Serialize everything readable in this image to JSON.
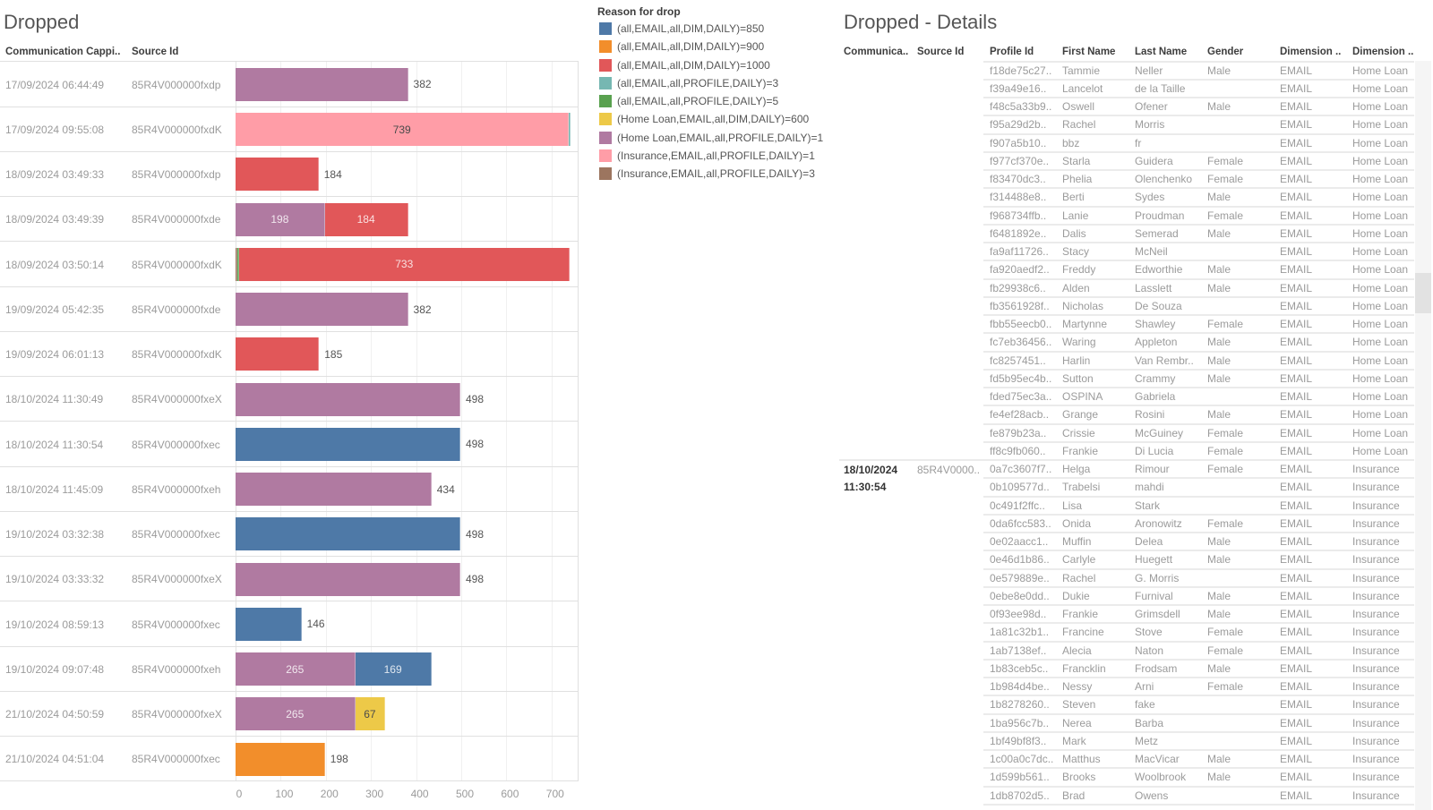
{
  "left_pane": {
    "title": "Dropped",
    "headers": {
      "communication": "Communication Cappi..",
      "source_id": "Source Id"
    }
  },
  "legend": {
    "title": "Reason for drop",
    "items": [
      {
        "label": "(all,EMAIL,all,DIM,DAILY)=850",
        "color": "#4e79a7"
      },
      {
        "label": "(all,EMAIL,all,DIM,DAILY)=900",
        "color": "#f28e2b"
      },
      {
        "label": "(all,EMAIL,all,DIM,DAILY)=1000",
        "color": "#e15759"
      },
      {
        "label": "(all,EMAIL,all,PROFILE,DAILY)=3",
        "color": "#76b7b2"
      },
      {
        "label": "(all,EMAIL,all,PROFILE,DAILY)=5",
        "color": "#59a14f"
      },
      {
        "label": "(Home Loan,EMAIL,all,DIM,DAILY)=600",
        "color": "#edc948"
      },
      {
        "label": "(Home Loan,EMAIL,all,PROFILE,DAILY)=1",
        "color": "#b07aa1"
      },
      {
        "label": "(Insurance,EMAIL,all,PROFILE,DAILY)=1",
        "color": "#ff9da7"
      },
      {
        "label": "(Insurance,EMAIL,all,PROFILE,DAILY)=3",
        "color": "#9c755f"
      }
    ]
  },
  "chart_data": {
    "type": "bar",
    "orientation": "horizontal",
    "stacked": true,
    "title": "Dropped",
    "xlabel": "",
    "ylabel": "",
    "xlim": [
      0,
      760
    ],
    "x_ticks": [
      0,
      100,
      200,
      300,
      400,
      500,
      600,
      700
    ],
    "grid": true,
    "legend_title": "Reason for drop",
    "legend_position": "right",
    "row_headers": [
      "Communication Cappi..",
      "Source Id"
    ],
    "rows": [
      {
        "communication": "17/09/2024 06:44:49",
        "source_id": "85R4V000000fxdp",
        "segments": [
          {
            "reason": 6,
            "value": 382,
            "show_label": true
          }
        ]
      },
      {
        "communication": "17/09/2024 09:55:08",
        "source_id": "85R4V000000fxdK",
        "segments": [
          {
            "reason": 7,
            "value": 739,
            "show_label": true
          },
          {
            "reason": 3,
            "value": 3,
            "show_label": false
          }
        ]
      },
      {
        "communication": "18/09/2024 03:49:33",
        "source_id": "85R4V000000fxdp",
        "segments": [
          {
            "reason": 2,
            "value": 184,
            "show_label": true
          }
        ]
      },
      {
        "communication": "18/09/2024 03:49:39",
        "source_id": "85R4V000000fxde",
        "segments": [
          {
            "reason": 6,
            "value": 198,
            "show_label": true
          },
          {
            "reason": 2,
            "value": 184,
            "show_label": true
          }
        ]
      },
      {
        "communication": "18/09/2024 03:50:14",
        "source_id": "85R4V000000fxdK",
        "segments": [
          {
            "reason": 8,
            "value": 3,
            "show_label": false
          },
          {
            "reason": 4,
            "value": 5,
            "show_label": false
          },
          {
            "reason": 2,
            "value": 733,
            "show_label": true
          }
        ]
      },
      {
        "communication": "19/09/2024 05:42:35",
        "source_id": "85R4V000000fxde",
        "segments": [
          {
            "reason": 6,
            "value": 382,
            "show_label": true
          }
        ]
      },
      {
        "communication": "19/09/2024 06:01:13",
        "source_id": "85R4V000000fxdK",
        "segments": [
          {
            "reason": 2,
            "value": 185,
            "show_label": true
          }
        ]
      },
      {
        "communication": "18/10/2024 11:30:49",
        "source_id": "85R4V000000fxeX",
        "segments": [
          {
            "reason": 6,
            "value": 498,
            "show_label": true
          }
        ]
      },
      {
        "communication": "18/10/2024 11:30:54",
        "source_id": "85R4V000000fxec",
        "segments": [
          {
            "reason": 0,
            "value": 498,
            "show_label": true
          }
        ]
      },
      {
        "communication": "18/10/2024 11:45:09",
        "source_id": "85R4V000000fxeh",
        "segments": [
          {
            "reason": 6,
            "value": 434,
            "show_label": true
          }
        ]
      },
      {
        "communication": "19/10/2024 03:32:38",
        "source_id": "85R4V000000fxec",
        "segments": [
          {
            "reason": 0,
            "value": 498,
            "show_label": true
          }
        ]
      },
      {
        "communication": "19/10/2024 03:33:32",
        "source_id": "85R4V000000fxeX",
        "segments": [
          {
            "reason": 6,
            "value": 498,
            "show_label": true
          }
        ]
      },
      {
        "communication": "19/10/2024 08:59:13",
        "source_id": "85R4V000000fxec",
        "segments": [
          {
            "reason": 0,
            "value": 146,
            "show_label": true
          }
        ]
      },
      {
        "communication": "19/10/2024 09:07:48",
        "source_id": "85R4V000000fxeh",
        "segments": [
          {
            "reason": 6,
            "value": 265,
            "show_label": true
          },
          {
            "reason": 0,
            "value": 169,
            "show_label": true
          }
        ]
      },
      {
        "communication": "21/10/2024 04:50:59",
        "source_id": "85R4V000000fxeX",
        "segments": [
          {
            "reason": 6,
            "value": 265,
            "show_label": true
          },
          {
            "reason": 5,
            "value": 67,
            "show_label": true
          }
        ]
      },
      {
        "communication": "21/10/2024 04:51:04",
        "source_id": "85R4V000000fxec",
        "segments": [
          {
            "reason": 1,
            "value": 198,
            "show_label": true
          }
        ]
      }
    ]
  },
  "details": {
    "title": "Dropped - Details",
    "headers": [
      "Communica..",
      "Source Id",
      "Profile Id",
      "First Name",
      "Last Name",
      "Gender",
      "Dimension ..",
      "Dimension .."
    ],
    "groups": [
      {
        "communication": "",
        "source_id": "",
        "rows": [
          [
            "f18de75c27..",
            "Tammie",
            "Neller",
            "Male",
            "EMAIL",
            "Home Loan"
          ],
          [
            "f39a49e16..",
            "Lancelot",
            "de la Taille",
            "",
            "EMAIL",
            "Home Loan"
          ],
          [
            "f48c5a33b9..",
            "Oswell",
            "Ofener",
            "Male",
            "EMAIL",
            "Home Loan"
          ],
          [
            "f95a29d2b..",
            "Rachel",
            "Morris",
            "",
            "EMAIL",
            "Home Loan"
          ],
          [
            "f907a5b10..",
            "bbz",
            "fr",
            "",
            "EMAIL",
            "Home Loan"
          ],
          [
            "f977cf370e..",
            "Starla",
            "Guidera",
            "Female",
            "EMAIL",
            "Home Loan"
          ],
          [
            "f83470dc3..",
            "Phelia",
            "Olenchenko",
            "Female",
            "EMAIL",
            "Home Loan"
          ],
          [
            "f314488e8..",
            "Berti",
            "Sydes",
            "Male",
            "EMAIL",
            "Home Loan"
          ],
          [
            "f968734ffb..",
            "Lanie",
            "Proudman",
            "Female",
            "EMAIL",
            "Home Loan"
          ],
          [
            "f6481892e..",
            "Dalis",
            "Semerad",
            "Male",
            "EMAIL",
            "Home Loan"
          ],
          [
            "fa9af11726..",
            "Stacy",
            "McNeil",
            "",
            "EMAIL",
            "Home Loan"
          ],
          [
            "fa920aedf2..",
            "Freddy",
            "Edworthie",
            "Male",
            "EMAIL",
            "Home Loan"
          ],
          [
            "fb29938c6..",
            "Alden",
            "Lasslett",
            "Male",
            "EMAIL",
            "Home Loan"
          ],
          [
            "fb3561928f..",
            "Nicholas",
            "De Souza",
            "",
            "EMAIL",
            "Home Loan"
          ],
          [
            "fbb55eecb0..",
            "Martynne",
            "Shawley",
            "Female",
            "EMAIL",
            "Home Loan"
          ],
          [
            "fc7eb36456..",
            "Waring",
            "Appleton",
            "Male",
            "EMAIL",
            "Home Loan"
          ],
          [
            "fc8257451..",
            "Harlin",
            "Van Rembr..",
            "Male",
            "EMAIL",
            "Home Loan"
          ],
          [
            "fd5b95ec4b..",
            "Sutton",
            "Crammy",
            "Male",
            "EMAIL",
            "Home Loan"
          ],
          [
            "fded75ec3a..",
            "OSPINA",
            "Gabriela",
            "",
            "EMAIL",
            "Home Loan"
          ],
          [
            "fe4ef28acb..",
            "Grange",
            "Rosini",
            "Male",
            "EMAIL",
            "Home Loan"
          ],
          [
            "fe879b23a..",
            "Crissie",
            "McGuiney",
            "Female",
            "EMAIL",
            "Home Loan"
          ],
          [
            "ff8c9fb060..",
            "Frankie",
            "Di Lucia",
            "Female",
            "EMAIL",
            "Home Loan"
          ]
        ]
      },
      {
        "communication": "18/10/2024 11:30:54",
        "source_id": "85R4V0000..",
        "rows": [
          [
            "0a7c3607f7..",
            "Helga",
            "Rimour",
            "Female",
            "EMAIL",
            "Insurance"
          ],
          [
            "0b109577d..",
            "Trabelsi",
            "mahdi",
            "",
            "EMAIL",
            "Insurance"
          ],
          [
            "0c491f2ffc..",
            "Lisa",
            "Stark",
            "",
            "EMAIL",
            "Insurance"
          ],
          [
            "0da6fcc583..",
            "Onida",
            "Aronowitz",
            "Female",
            "EMAIL",
            "Insurance"
          ],
          [
            "0e02aacc1..",
            "Muffin",
            "Delea",
            "Male",
            "EMAIL",
            "Insurance"
          ],
          [
            "0e46d1b86..",
            "Carlyle",
            "Huegett",
            "Male",
            "EMAIL",
            "Insurance"
          ],
          [
            "0e579889e..",
            "Rachel",
            "G. Morris",
            "",
            "EMAIL",
            "Insurance"
          ],
          [
            "0ebe8e0dd..",
            "Dukie",
            "Furnival",
            "Male",
            "EMAIL",
            "Insurance"
          ],
          [
            "0f93ee98d..",
            "Frankie",
            "Grimsdell",
            "Male",
            "EMAIL",
            "Insurance"
          ],
          [
            "1a81c32b1..",
            "Francine",
            "Stove",
            "Female",
            "EMAIL",
            "Insurance"
          ],
          [
            "1ab7138ef..",
            "Alecia",
            "Naton",
            "Female",
            "EMAIL",
            "Insurance"
          ],
          [
            "1b83ceb5c..",
            "Francklin",
            "Frodsam",
            "Male",
            "EMAIL",
            "Insurance"
          ],
          [
            "1b984d4be..",
            "Nessy",
            "Arni",
            "Female",
            "EMAIL",
            "Insurance"
          ],
          [
            "1b8278260..",
            "Steven",
            "fake",
            "",
            "EMAIL",
            "Insurance"
          ],
          [
            "1ba956c7b..",
            "Nerea",
            "Barba",
            "",
            "EMAIL",
            "Insurance"
          ],
          [
            "1bf49bf8f3..",
            "Mark",
            "Metz",
            "",
            "EMAIL",
            "Insurance"
          ],
          [
            "1c00a0c7dc..",
            "Matthus",
            "MacVicar",
            "Male",
            "EMAIL",
            "Insurance"
          ],
          [
            "1d599b561..",
            "Brooks",
            "Woolbrook",
            "Male",
            "EMAIL",
            "Insurance"
          ],
          [
            "1db8702d5..",
            "Brad",
            "Owens",
            "",
            "EMAIL",
            "Insurance"
          ]
        ]
      }
    ]
  }
}
